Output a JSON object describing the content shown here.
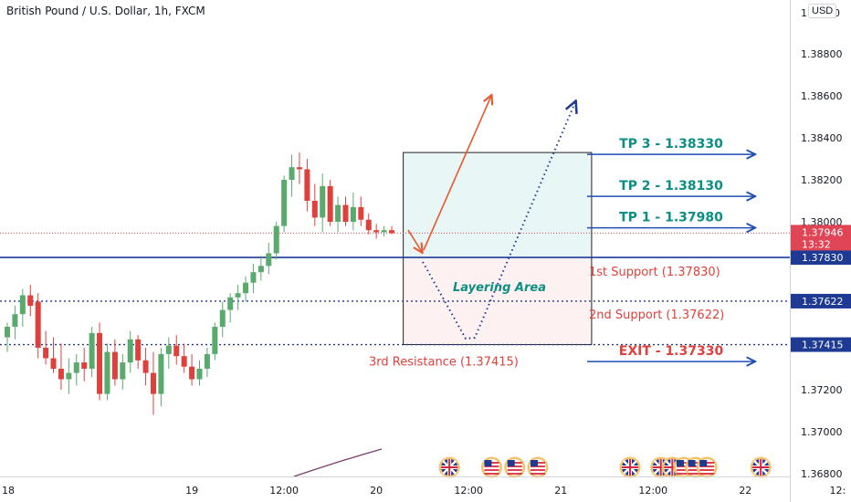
{
  "header": {
    "title": "British Pound / U.S. Dollar, 1h, FXCM",
    "currency": "USD",
    "currency_suffix": "0",
    "top_left_price": "1"
  },
  "colors": {
    "bull": "#5aaa6e",
    "bear": "#e0403b",
    "tp_text": "#0a8f83",
    "arrow_blue": "#1f4eb4",
    "support_blue": "#1f3a93",
    "orange": "#e8582b",
    "current_price": "#e04556",
    "price_tag": "#1f3a93",
    "zone_top": "#e8f6f6",
    "zone_bottom": "#fdf1f1"
  },
  "icons": [
    "uk-flag-icon",
    "us-flag-icon"
  ],
  "chart_data": {
    "type": "candlestick",
    "symbol": "British Pound / U.S. Dollar",
    "timeframe": "1h",
    "source": "FXCM",
    "y_ticks": [
      "1.38800",
      "1.38600",
      "1.38400",
      "1.38200",
      "1.38000",
      "1.37200",
      "1.37000",
      "1.36800"
    ],
    "x_ticks": [
      {
        "label": "18",
        "hour": 0
      },
      {
        "label": "19",
        "hour": 24
      },
      {
        "label": "12:00",
        "hour": 36
      },
      {
        "label": "20",
        "hour": 48
      },
      {
        "label": "12:00",
        "hour": 60
      },
      {
        "label": "21",
        "hour": 72
      },
      {
        "label": "12:00",
        "hour": 84
      },
      {
        "label": "22",
        "hour": 96
      },
      {
        "label": "12:",
        "hour": 108
      }
    ],
    "ylim": [
      1.3672,
      1.3902
    ],
    "xlim_hours": [
      0,
      110.5
    ],
    "candles": [
      [
        1.3745,
        1.3752,
        1.3738,
        1.375
      ],
      [
        1.375,
        1.376,
        1.3744,
        1.3756
      ],
      [
        1.3756,
        1.3768,
        1.375,
        1.3765
      ],
      [
        1.3765,
        1.377,
        1.3755,
        1.376
      ],
      [
        1.3762,
        1.3766,
        1.3735,
        1.374
      ],
      [
        1.374,
        1.3748,
        1.3732,
        1.3735
      ],
      [
        1.3735,
        1.3745,
        1.3728,
        1.373
      ],
      [
        1.373,
        1.3742,
        1.372,
        1.3725
      ],
      [
        1.3725,
        1.3735,
        1.3718,
        1.3728
      ],
      [
        1.3728,
        1.3737,
        1.3722,
        1.3733
      ],
      [
        1.3733,
        1.374,
        1.3724,
        1.373
      ],
      [
        1.373,
        1.375,
        1.3726,
        1.3747
      ],
      [
        1.3747,
        1.3752,
        1.3715,
        1.3718
      ],
      [
        1.3718,
        1.3742,
        1.3715,
        1.3738
      ],
      [
        1.3738,
        1.3744,
        1.3722,
        1.3725
      ],
      [
        1.3725,
        1.3737,
        1.372,
        1.3733
      ],
      [
        1.3733,
        1.3748,
        1.3728,
        1.3744
      ],
      [
        1.3744,
        1.3746,
        1.373,
        1.3734
      ],
      [
        1.3734,
        1.374,
        1.3722,
        1.3728
      ],
      [
        1.3728,
        1.3738,
        1.3708,
        1.3718
      ],
      [
        1.3718,
        1.374,
        1.3712,
        1.3737
      ],
      [
        1.3737,
        1.3745,
        1.373,
        1.3741
      ],
      [
        1.3741,
        1.3746,
        1.3732,
        1.3736
      ],
      [
        1.3736,
        1.3742,
        1.3728,
        1.3731
      ],
      [
        1.3731,
        1.3737,
        1.3722,
        1.3725
      ],
      [
        1.3725,
        1.3734,
        1.3722,
        1.373
      ],
      [
        1.373,
        1.374,
        1.3726,
        1.3737
      ],
      [
        1.3737,
        1.3752,
        1.3734,
        1.375
      ],
      [
        1.375,
        1.3762,
        1.3745,
        1.3758
      ],
      [
        1.3758,
        1.3766,
        1.3752,
        1.3764
      ],
      [
        1.3764,
        1.377,
        1.3758,
        1.3766
      ],
      [
        1.3766,
        1.3774,
        1.3762,
        1.3771
      ],
      [
        1.3771,
        1.378,
        1.3766,
        1.3776
      ],
      [
        1.3776,
        1.3784,
        1.3772,
        1.3779
      ],
      [
        1.3779,
        1.379,
        1.3775,
        1.3785
      ],
      [
        1.3785,
        1.38,
        1.3782,
        1.3798
      ],
      [
        1.3798,
        1.3822,
        1.3795,
        1.382
      ],
      [
        1.382,
        1.3832,
        1.3812,
        1.3826
      ],
      [
        1.3826,
        1.3833,
        1.3818,
        1.3825
      ],
      [
        1.3825,
        1.383,
        1.3805,
        1.381
      ],
      [
        1.381,
        1.3818,
        1.3798,
        1.3802
      ],
      [
        1.3802,
        1.3823,
        1.3795,
        1.3817
      ],
      [
        1.3817,
        1.382,
        1.3798,
        1.38
      ],
      [
        1.38,
        1.3812,
        1.3795,
        1.3808
      ],
      [
        1.3808,
        1.3812,
        1.3798,
        1.38
      ],
      [
        1.38,
        1.3814,
        1.3796,
        1.3807
      ],
      [
        1.3807,
        1.3812,
        1.3798,
        1.3801
      ],
      [
        1.3801,
        1.3804,
        1.3794,
        1.3796
      ],
      [
        1.3796,
        1.3799,
        1.3792,
        1.3795
      ],
      [
        1.3795,
        1.3798,
        1.3793,
        1.3796
      ],
      [
        1.3796,
        1.3798,
        1.3794,
        1.37946
      ]
    ],
    "current_price": {
      "value": 1.37946,
      "label": "1.37946",
      "countdown": "13:32"
    },
    "zone": {
      "x_start_hour": 51.5,
      "x_end_hour": 76,
      "top": 1.3833,
      "mid": 1.3783,
      "bottom": 1.37415
    },
    "levels": [
      {
        "name": "support_1",
        "value": 1.3783,
        "tag": "1.37830",
        "style": "solid"
      },
      {
        "name": "support_2",
        "value": 1.37622,
        "tag": "1.37622",
        "style": "dotted"
      },
      {
        "name": "resistance_3",
        "value": 1.37415,
        "tag": "1.37415",
        "style": "dotted"
      }
    ],
    "annotations": {
      "tp3": "TP 3 - 1.38330",
      "tp2": "TP 2 - 1.38130",
      "tp1": "TP 1 - 1.37980",
      "exit": "EXIT - 1.37330",
      "first_support": "1st Support (1.37830)",
      "second_support": "2nd Support (1.37622)",
      "third_resistance": "3rd Resistance (1.37415)",
      "layering_area": "Layering Area"
    },
    "tp_values": [
      1.3833,
      1.3813,
      1.3798
    ],
    "exit_value": 1.3733,
    "event_flags": [
      {
        "hour": 57.5,
        "icon": "uk-flag-icon"
      },
      {
        "hour": 63,
        "icon": "us-flag-icon"
      },
      {
        "hour": 66,
        "icon": "us-flag-icon"
      },
      {
        "hour": 69,
        "icon": "us-flag-icon"
      },
      {
        "hour": 81,
        "icon": "uk-flag-icon"
      },
      {
        "hour": 85,
        "icon": "uk-flag-icon"
      },
      {
        "hour": 86.5,
        "icon": "uk-flag-icon"
      },
      {
        "hour": 88,
        "icon": "us-flag-icon"
      },
      {
        "hour": 89.5,
        "icon": "us-flag-icon"
      },
      {
        "hour": 91,
        "icon": "us-flag-icon"
      },
      {
        "hour": 98,
        "icon": "uk-flag-icon"
      }
    ]
  }
}
